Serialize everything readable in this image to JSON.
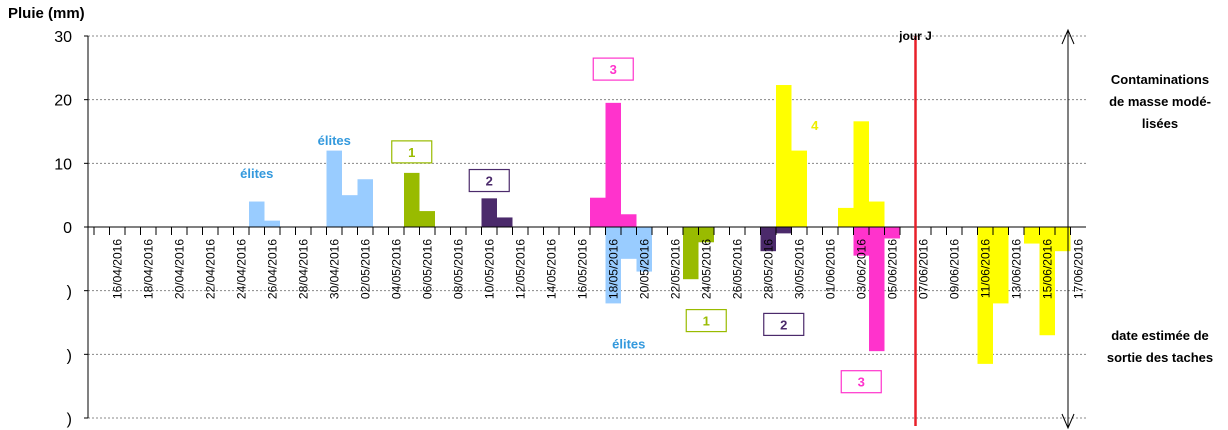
{
  "chart_data": {
    "type": "bar",
    "title": "Pluie (mm)",
    "categories": [
      "15/04/2016",
      "16/04/2016",
      "17/04/2016",
      "18/04/2016",
      "19/04/2016",
      "20/04/2016",
      "21/04/2016",
      "22/04/2016",
      "23/04/2016",
      "24/04/2016",
      "25/04/2016",
      "26/04/2016",
      "27/04/2016",
      "28/04/2016",
      "29/04/2016",
      "30/04/2016",
      "01/05/2016",
      "02/05/2016",
      "03/05/2016",
      "04/05/2016",
      "05/05/2016",
      "06/05/2016",
      "07/05/2016",
      "08/05/2016",
      "09/05/2016",
      "10/05/2016",
      "11/05/2016",
      "12/05/2016",
      "13/05/2016",
      "14/05/2016",
      "15/05/2016",
      "16/05/2016",
      "17/05/2016",
      "18/05/2016",
      "19/05/2016",
      "20/05/2016",
      "21/05/2016",
      "22/05/2016",
      "23/05/2016",
      "24/05/2016",
      "25/05/2016",
      "26/05/2016",
      "27/05/2016",
      "28/05/2016",
      "29/05/2016",
      "30/05/2016",
      "31/05/2016",
      "01/06/2016",
      "02/06/2016",
      "03/06/2016",
      "04/06/2016",
      "05/06/2016",
      "06/06/2016",
      "07/06/2016",
      "08/06/2016",
      "09/06/2016",
      "10/06/2016",
      "11/06/2016",
      "12/06/2016",
      "13/06/2016",
      "14/06/2016",
      "15/06/2016",
      "16/06/2016",
      "17/06/2016"
    ],
    "category_labels": [
      null,
      "16/04/2016",
      null,
      "18/04/2016",
      null,
      "20/04/2016",
      null,
      "22/04/2016",
      null,
      "24/04/2016",
      null,
      "26/04/2016",
      null,
      "28/04/2016",
      null,
      "30/04/2016",
      null,
      "02/05/2016",
      null,
      "04/05/2016",
      null,
      "06/05/2016",
      null,
      "08/05/2016",
      null,
      "10/05/2016",
      null,
      "12/05/2016",
      null,
      "14/05/2016",
      null,
      "16/05/2016",
      null,
      "18/05/2016",
      null,
      "20/05/2016",
      null,
      "22/05/2016",
      null,
      "24/05/2016",
      null,
      "26/05/2016",
      null,
      "28/05/2016",
      null,
      "30/05/2016",
      null,
      "01/06/2016",
      null,
      "03/06/2016",
      null,
      "05/06/2016",
      null,
      "07/06/2016",
      null,
      "09/06/2016",
      null,
      "11/06/2016",
      null,
      "13/06/2016",
      null,
      "15/06/2016",
      null,
      "17/06/2016"
    ],
    "series": [
      {
        "color": "#99ccff",
        "x": [
          "25/04/2016",
          "26/04/2016",
          "30/04/2016",
          "01/05/2016",
          "02/05/2016",
          "18/05/2016",
          "19/05/2016",
          "20/05/2016"
        ],
        "values": [
          4,
          1,
          12,
          5,
          7.5,
          -12,
          -5,
          -7
        ]
      },
      {
        "color": "#99bb00",
        "x": [
          "05/05/2016",
          "06/05/2016",
          "23/05/2016",
          "24/05/2016"
        ],
        "values": [
          8.5,
          2.5,
          -8.2,
          -2.4
        ]
      },
      {
        "color": "#4b2a6b",
        "x": [
          "10/05/2016",
          "11/05/2016",
          "28/05/2016",
          "29/05/2016"
        ],
        "values": [
          4.5,
          1.5,
          -3.8,
          -1
        ]
      },
      {
        "color": "#ff33cc",
        "x": [
          "17/05/2016",
          "18/05/2016",
          "19/05/2016",
          "03/06/2016",
          "04/06/2016",
          "05/06/2016"
        ],
        "values": [
          4.6,
          19.5,
          2,
          -4.5,
          -19.5,
          -1.8
        ]
      },
      {
        "color": "#ffff00",
        "x": [
          "29/05/2016",
          "30/05/2016",
          "02/06/2016",
          "03/06/2016",
          "04/06/2016",
          "11/06/2016",
          "12/06/2016",
          "14/06/2016",
          "15/06/2016",
          "16/06/2016"
        ],
        "values": [
          22.3,
          12,
          3,
          16.6,
          4,
          -21.5,
          -12,
          -2.6,
          -17,
          -3.8
        ]
      }
    ],
    "ylim": [
      -30,
      30
    ],
    "yticks": [
      {
        "value": -30,
        "label": ")"
      },
      {
        "value": -20,
        "label": ")"
      },
      {
        "value": -10,
        "label": ")"
      },
      0,
      10,
      20,
      30
    ],
    "grid": true,
    "reference_line": {
      "x": "07/06/2016",
      "label": "jour J",
      "color": "#e8202a"
    },
    "annotations": [
      {
        "text": "élites",
        "x": "25/04/2016",
        "y": 8.5,
        "color": "#3399dd"
      },
      {
        "text": "élites",
        "x": "30/04/2016",
        "y": 13.7,
        "color": "#3399dd"
      },
      {
        "text": "élites",
        "x": "19/05/2016",
        "y": -18.3,
        "color": "#3399dd"
      },
      {
        "text": "1",
        "x": "05/05/2016",
        "y": 11.8,
        "color": "#99bb00",
        "box": true
      },
      {
        "text": "2",
        "x": "10/05/2016",
        "y": 7.3,
        "color": "#4b2a6b",
        "box": true
      },
      {
        "text": "3",
        "x": "18/05/2016",
        "y": 24.8,
        "color": "#ff33cc",
        "box": true
      },
      {
        "text": "1",
        "x": "24/05/2016",
        "y": -14.7,
        "color": "#99bb00",
        "box": true
      },
      {
        "text": "2",
        "x": "29/05/2016",
        "y": -15.3,
        "color": "#4b2a6b",
        "box": true
      },
      {
        "text": "3",
        "x": "03/06/2016",
        "y": -24.3,
        "color": "#ff33cc",
        "box": true
      },
      {
        "text": "4",
        "x": "31/05/2016",
        "y": 16.0,
        "color": "#eeee00"
      }
    ],
    "side_labels": [
      [
        "Contaminations",
        "de masse modé-",
        "lisées"
      ],
      [
        "date estimée de",
        "sortie des taches"
      ]
    ]
  }
}
